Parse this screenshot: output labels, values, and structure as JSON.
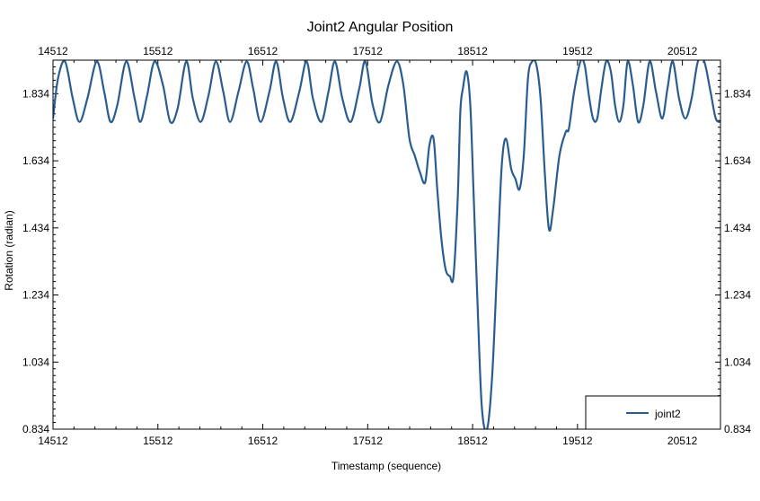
{
  "chart_data": {
    "type": "line",
    "title": "Joint2 Angular Position",
    "xlabel": "Timestamp (sequence)",
    "ylabel": "Rotation (radian)",
    "xlim": [
      14512,
      20875
    ],
    "ylim": [
      0.834,
      1.934
    ],
    "x_ticks": [
      14512,
      15512,
      16512,
      17512,
      18512,
      19512,
      20512
    ],
    "x_tick_labels": [
      "14512",
      "15512",
      "16512",
      "17512",
      "18512",
      "19512",
      "20512"
    ],
    "y_ticks": [
      0.834,
      1.034,
      1.234,
      1.434,
      1.634,
      1.834
    ],
    "y_tick_labels": [
      "0.834",
      "1.034",
      "1.234",
      "1.434",
      "1.634",
      "1.834"
    ],
    "top_axis_ticks": true,
    "right_axis_ticks": true,
    "grid": false,
    "legend": {
      "position": "bottom-right",
      "entries": [
        "joint2"
      ]
    },
    "series": [
      {
        "name": "joint2",
        "color": "#2a5d8f",
        "x": [
          14512,
          14560,
          14627,
          14700,
          14765,
          14840,
          14929,
          15000,
          15060,
          15125,
          15210,
          15290,
          15345,
          15410,
          15480,
          15560,
          15630,
          15700,
          15782,
          15845,
          15920,
          15995,
          16065,
          16135,
          16200,
          16280,
          16358,
          16420,
          16490,
          16575,
          16640,
          16705,
          16775,
          16860,
          16930,
          16990,
          17070,
          17138,
          17200,
          17270,
          17350,
          17432,
          17490,
          17560,
          17630,
          17710,
          17790,
          17852,
          17910,
          17960,
          18010,
          18060,
          18100,
          18140,
          18175,
          18215,
          18255,
          18295,
          18330,
          18370,
          18395,
          18420,
          18455,
          18490,
          18520,
          18560,
          18600,
          18650,
          18700,
          18750,
          18790,
          18830,
          18880,
          18920,
          18960,
          19000,
          19040,
          19080,
          19120,
          19160,
          19200,
          19240,
          19280,
          19340,
          19400,
          19430,
          19480,
          19540,
          19580,
          19620,
          19660,
          19700,
          19740,
          19785,
          19830,
          19870,
          19910,
          19950,
          19990,
          20040,
          20090,
          20140,
          20200,
          20260,
          20320,
          20370,
          20420,
          20480,
          20540,
          20600,
          20660,
          20720,
          20780,
          20830,
          20875
        ],
        "values": [
          1.76,
          1.88,
          1.93,
          1.82,
          1.75,
          1.82,
          1.93,
          1.84,
          1.75,
          1.8,
          1.93,
          1.82,
          1.75,
          1.83,
          1.93,
          1.86,
          1.75,
          1.79,
          1.93,
          1.82,
          1.75,
          1.83,
          1.93,
          1.84,
          1.75,
          1.84,
          1.93,
          1.85,
          1.75,
          1.84,
          1.93,
          1.82,
          1.75,
          1.84,
          1.93,
          1.82,
          1.75,
          1.84,
          1.93,
          1.82,
          1.75,
          1.85,
          1.93,
          1.8,
          1.75,
          1.86,
          1.93,
          1.86,
          1.7,
          1.65,
          1.6,
          1.57,
          1.68,
          1.7,
          1.55,
          1.4,
          1.31,
          1.29,
          1.29,
          1.52,
          1.78,
          1.85,
          1.9,
          1.8,
          1.55,
          1.2,
          0.9,
          0.834,
          1.0,
          1.35,
          1.62,
          1.7,
          1.61,
          1.58,
          1.55,
          1.65,
          1.88,
          1.93,
          1.92,
          1.82,
          1.6,
          1.43,
          1.49,
          1.65,
          1.72,
          1.73,
          1.84,
          1.93,
          1.92,
          1.83,
          1.76,
          1.76,
          1.85,
          1.93,
          1.9,
          1.8,
          1.75,
          1.8,
          1.93,
          1.86,
          1.75,
          1.8,
          1.93,
          1.84,
          1.76,
          1.85,
          1.93,
          1.82,
          1.76,
          1.82,
          1.93,
          1.93,
          1.84,
          1.76,
          1.75
        ]
      }
    ]
  }
}
